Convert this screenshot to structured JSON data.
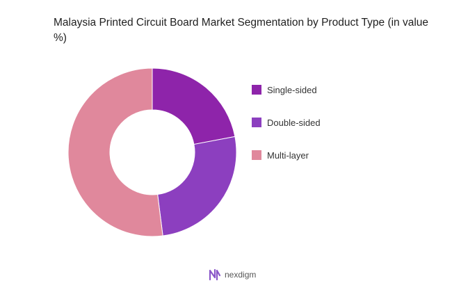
{
  "chart_data": {
    "type": "pie",
    "donut": true,
    "title": "Malaysia Printed Circuit Board Market Segmentation by Product Type (in value %)",
    "legend_position": "right",
    "series": [
      {
        "name": "Single-sided",
        "value": 22,
        "color": "#8e24aa"
      },
      {
        "name": "Double-sided",
        "value": 26,
        "color": "#8c3fbf"
      },
      {
        "name": "Multi-layer",
        "value": 52,
        "color": "#e0889c"
      }
    ]
  },
  "brand": {
    "name": "nexdigm",
    "logo_icon": "nexdigm-logo-icon",
    "logo_color": "#8a57c9"
  }
}
